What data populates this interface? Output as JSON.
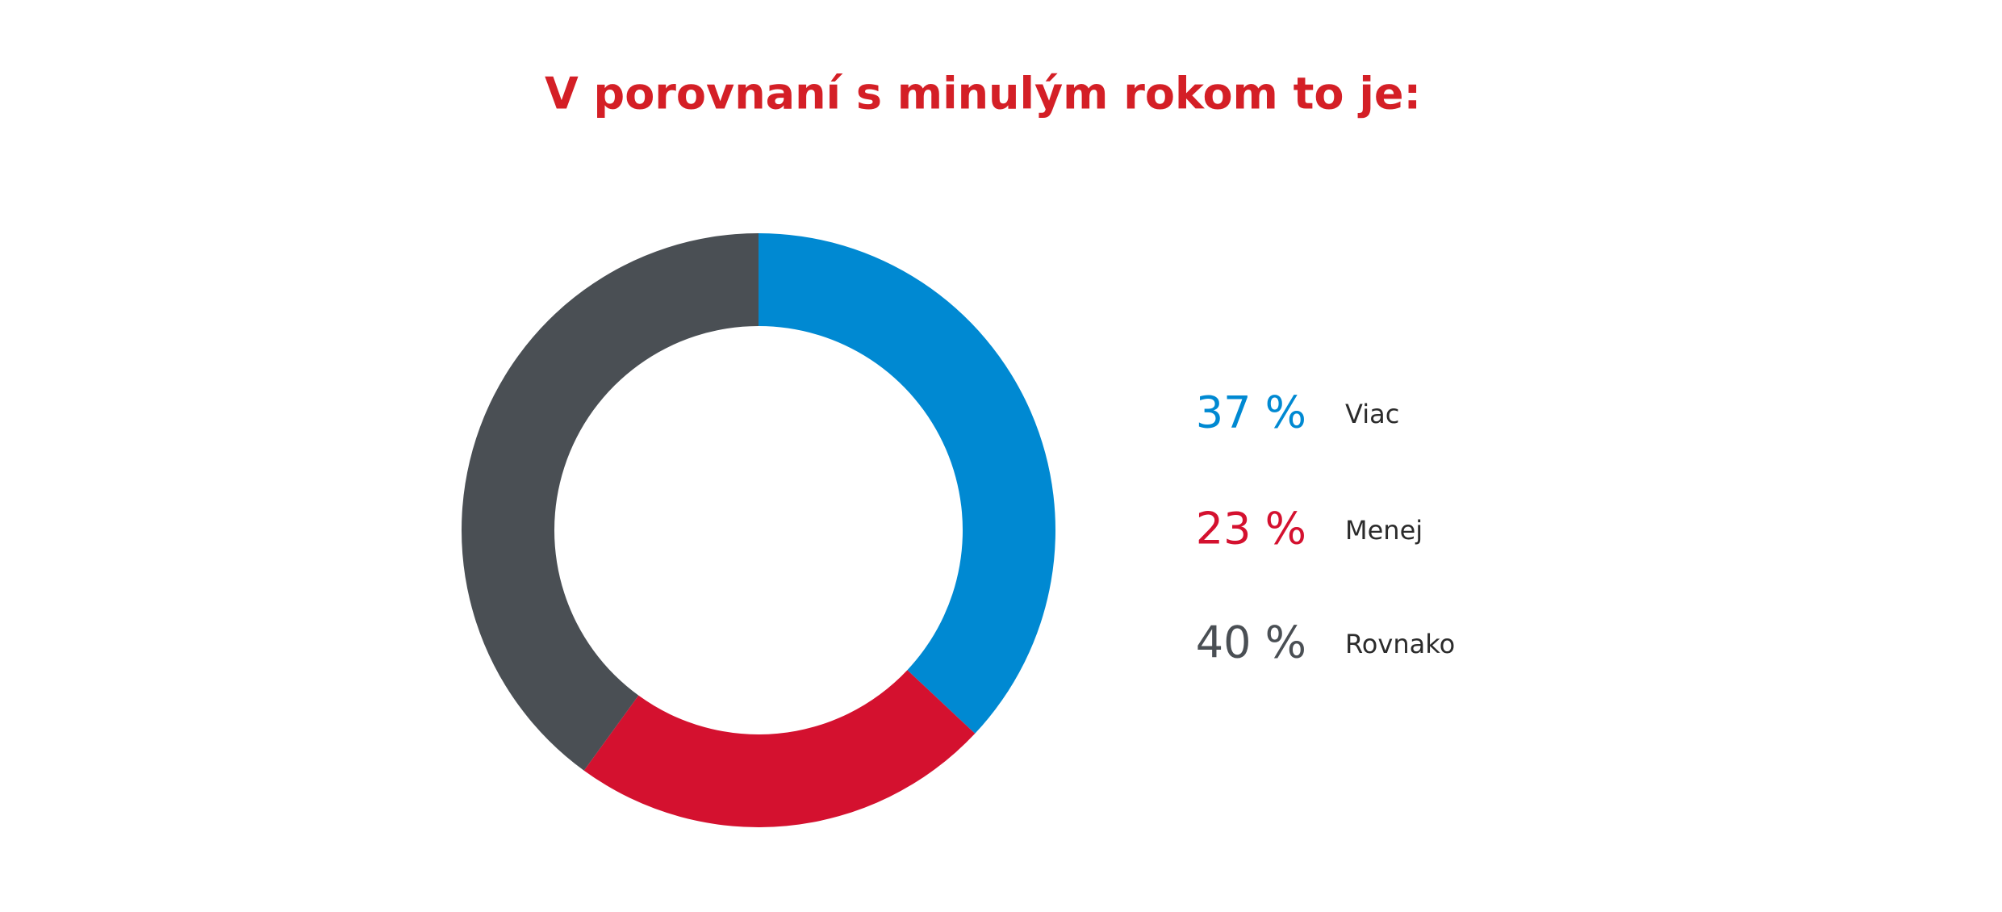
{
  "chart_data": {
    "type": "pie",
    "donut": true,
    "title": "V porovnaní s minulým rokom to je:",
    "categories": [
      "Viac",
      "Menej",
      "Rovnako"
    ],
    "values": [
      37,
      23,
      40
    ],
    "value_labels": [
      "37 %",
      "23 %",
      "40 %"
    ],
    "colors": [
      "#0089d2",
      "#d4112f",
      "#4a4f54"
    ]
  }
}
